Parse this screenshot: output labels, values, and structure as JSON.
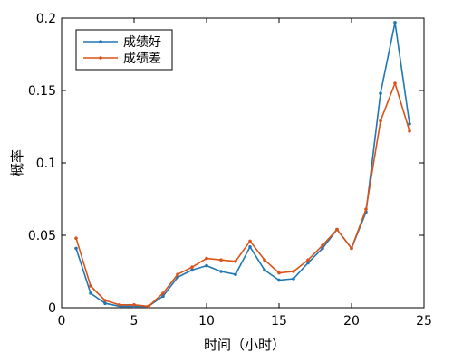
{
  "chart_data": {
    "type": "line",
    "xlabel": "时间（小时）",
    "ylabel": "概率",
    "xlim": [
      0,
      25
    ],
    "ylim": [
      0,
      0.2
    ],
    "xticks": [
      0,
      5,
      10,
      15,
      20,
      25
    ],
    "yticks": [
      0,
      0.05,
      0.1,
      0.15,
      0.2
    ],
    "xtick_labels": [
      "0",
      "5",
      "10",
      "15",
      "20",
      "25"
    ],
    "ytick_labels": [
      "0",
      "0.05",
      "0.1",
      "0.15",
      "0.2"
    ],
    "grid": false,
    "legend_position": "top-left",
    "x": [
      1,
      2,
      3,
      4,
      5,
      6,
      7,
      8,
      9,
      10,
      11,
      12,
      13,
      14,
      15,
      16,
      17,
      18,
      19,
      20,
      21,
      22,
      23,
      24
    ],
    "series": [
      {
        "name": "成绩好",
        "color": "#1f77b4",
        "values": [
          0.041,
          0.01,
          0.003,
          0.001,
          0.001,
          0.001,
          0.008,
          0.021,
          0.026,
          0.029,
          0.025,
          0.023,
          0.042,
          0.026,
          0.019,
          0.02,
          0.031,
          0.041,
          0.054,
          0.041,
          0.066,
          0.148,
          0.197,
          0.127
        ]
      },
      {
        "name": "成绩差",
        "color": "#d95319",
        "values": [
          0.048,
          0.015,
          0.005,
          0.002,
          0.002,
          0.001,
          0.01,
          0.023,
          0.028,
          0.034,
          0.033,
          0.032,
          0.046,
          0.033,
          0.024,
          0.025,
          0.033,
          0.043,
          0.054,
          0.041,
          0.068,
          0.129,
          0.155,
          0.122
        ]
      }
    ]
  }
}
